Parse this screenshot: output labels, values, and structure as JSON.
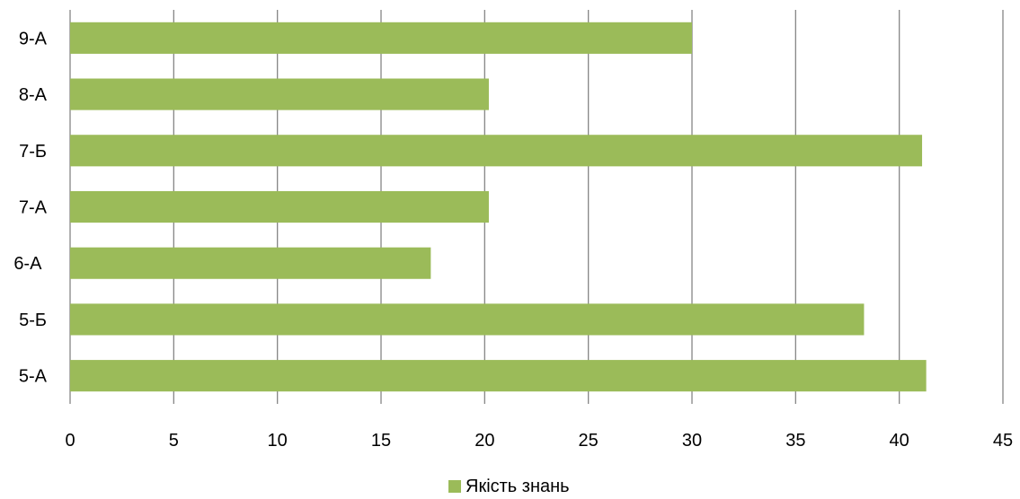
{
  "chart_data": {
    "type": "bar",
    "orientation": "horizontal",
    "title": "",
    "xlabel": "",
    "ylabel": "",
    "categories": [
      "9-А",
      "8-А",
      "7-Б",
      "7-А",
      "6-А ",
      "5-Б",
      "5-А"
    ],
    "series": [
      {
        "name": "Якість знань",
        "color": "#9BBB59",
        "values": [
          30,
          20.2,
          41.1,
          20.2,
          17.4,
          38.3,
          41.3
        ]
      }
    ],
    "xlim": [
      0,
      45
    ],
    "x_ticks": [
      "0",
      "5",
      "10",
      "15",
      "20",
      "25",
      "30",
      "35",
      "40",
      "45"
    ],
    "grid": "vertical",
    "legend_position": "bottom"
  }
}
